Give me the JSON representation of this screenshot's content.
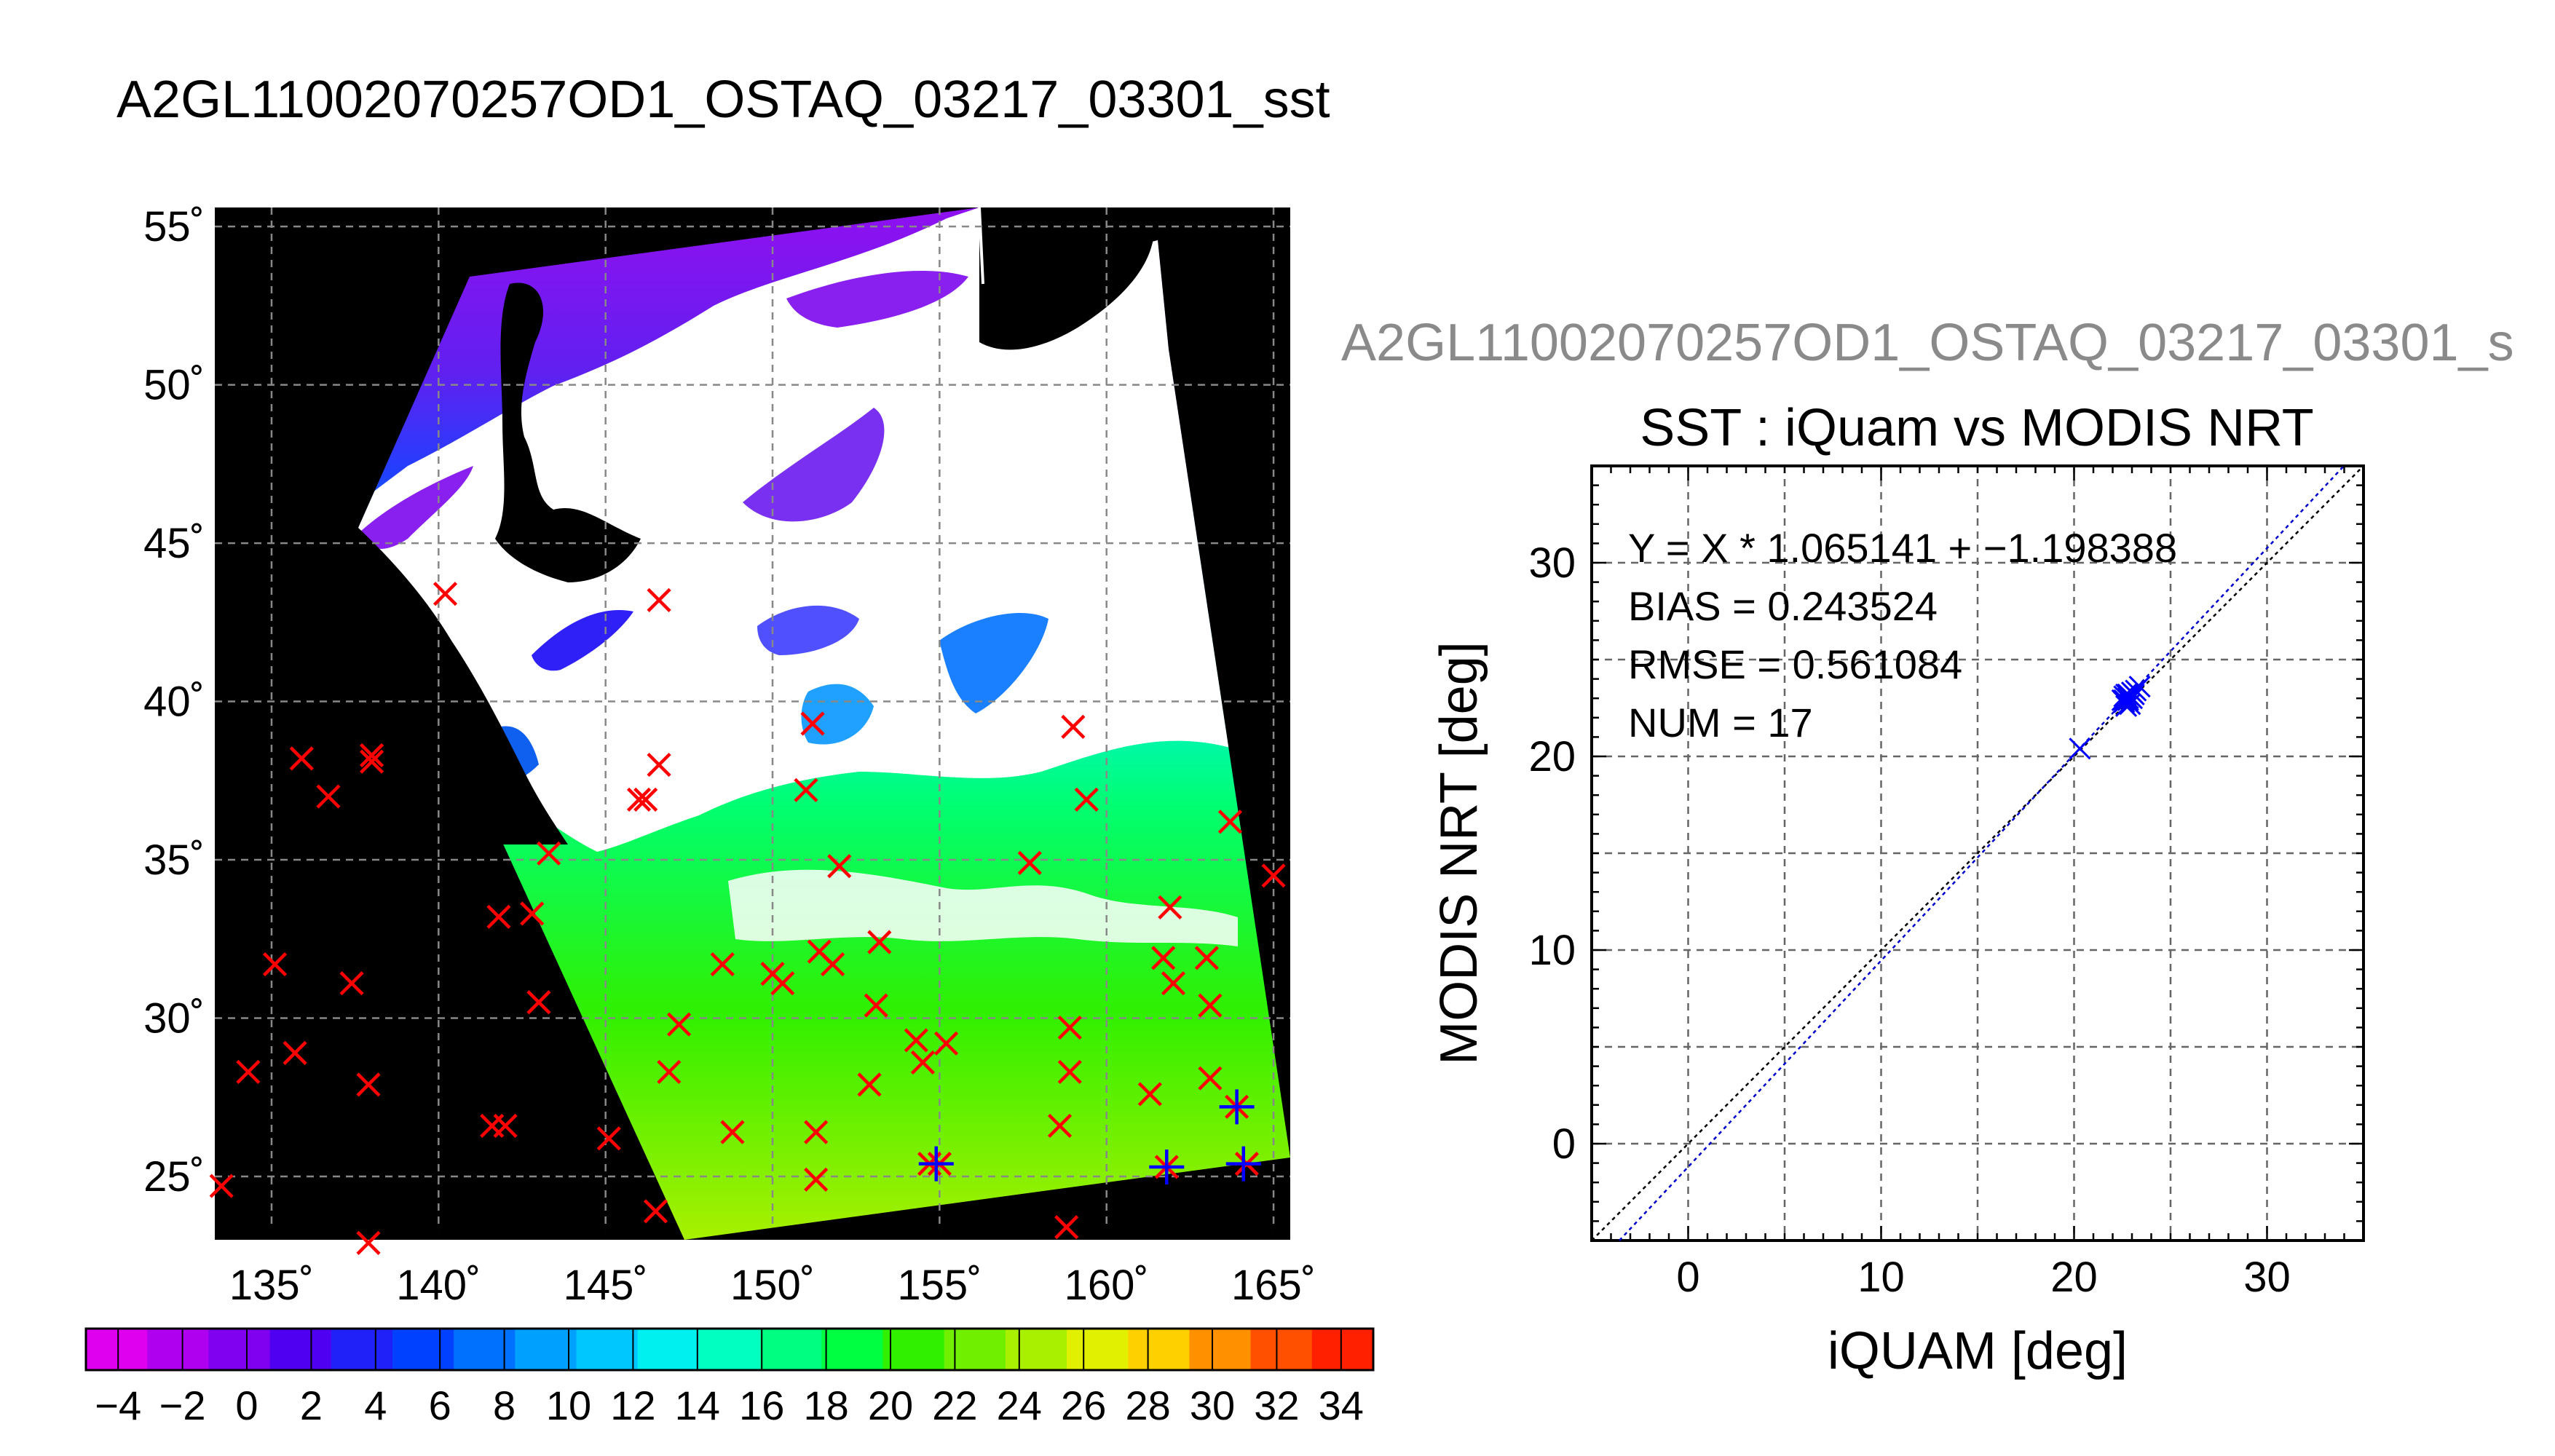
{
  "page_title": "A2GL11002070257OD1_OSTAQ_03217_03301_sst",
  "scatter_file_title": "A2GL11002070257OD1_OSTAQ_03217_03301_s",
  "colors": {
    "background": "#ffffff",
    "map_land_nodata": "#000000",
    "cloud_mask": "#ffffff",
    "marker_in_situ": "#ff0000",
    "marker_matchup": "#0000ff",
    "regression_line": "#0000cc",
    "identity_line": "#000000",
    "grid": "#555555"
  },
  "chart_data": [
    {
      "type": "heatmap",
      "title": "",
      "xlabel": "",
      "ylabel": "",
      "xlim": [
        133.3,
        165.5
      ],
      "ylim": [
        23.0,
        55.6
      ],
      "x_ticks": [
        135,
        140,
        145,
        150,
        155,
        160,
        165
      ],
      "x_tick_labels": [
        "135˚",
        "140˚",
        "145˚",
        "150˚",
        "155˚",
        "160˚",
        "165˚"
      ],
      "y_ticks": [
        25,
        30,
        35,
        40,
        45,
        50,
        55
      ],
      "y_tick_labels": [
        "25˚",
        "30˚",
        "35˚",
        "40˚",
        "45˚",
        "50˚",
        "55˚"
      ],
      "grid": true,
      "colorbar": {
        "min": -5,
        "max": 35,
        "step": 2,
        "tick_labels": [
          "−4",
          "−2",
          "0",
          "2",
          "4",
          "6",
          "8",
          "10",
          "12",
          "14",
          "16",
          "18",
          "20",
          "22",
          "24",
          "26",
          "28",
          "30",
          "32",
          "34"
        ],
        "colors": [
          "#e000f0",
          "#b000f0",
          "#8000f0",
          "#5000f0",
          "#2020f8",
          "#0040ff",
          "#0070ff",
          "#00a0ff",
          "#00c8ff",
          "#00f0f0",
          "#00ffc0",
          "#00ff80",
          "#00ff40",
          "#30f000",
          "#70f000",
          "#a8f000",
          "#e0f000",
          "#ffd000",
          "#ff9000",
          "#ff5000",
          "#ff2000"
        ]
      },
      "series": [
        {
          "name": "",
          "marker": "x",
          "color": "#ff0000",
          "points": [
            [
              140.2,
              43.4
            ],
            [
              146.6,
              43.2
            ],
            [
              135.9,
              38.2
            ],
            [
              138.0,
              38.3
            ],
            [
              138.0,
              38.1
            ],
            [
              136.7,
              37.0
            ],
            [
              146.6,
              38.0
            ],
            [
              146.0,
              36.9
            ],
            [
              146.2,
              36.9
            ],
            [
              151.0,
              37.2
            ],
            [
              151.2,
              39.3
            ],
            [
              159.0,
              39.2
            ],
            [
              159.4,
              36.9
            ],
            [
              163.7,
              36.2
            ],
            [
              165.0,
              34.5
            ],
            [
              143.3,
              35.2
            ],
            [
              152.0,
              34.8
            ],
            [
              157.7,
              34.9
            ],
            [
              141.8,
              33.2
            ],
            [
              142.8,
              33.3
            ],
            [
              161.9,
              33.5
            ],
            [
              135.1,
              31.7
            ],
            [
              137.4,
              31.1
            ],
            [
              148.5,
              31.7
            ],
            [
              150.0,
              31.4
            ],
            [
              150.3,
              31.1
            ],
            [
              151.4,
              32.1
            ],
            [
              151.8,
              31.7
            ],
            [
              153.2,
              32.4
            ],
            [
              161.7,
              31.9
            ],
            [
              163.0,
              31.9
            ],
            [
              162.0,
              31.1
            ],
            [
              143.0,
              30.5
            ],
            [
              147.2,
              29.8
            ],
            [
              153.1,
              30.4
            ],
            [
              158.9,
              29.7
            ],
            [
              163.1,
              30.4
            ],
            [
              135.7,
              28.9
            ],
            [
              134.3,
              28.3
            ],
            [
              137.9,
              27.9
            ],
            [
              146.9,
              28.3
            ],
            [
              154.3,
              29.3
            ],
            [
              154.5,
              28.6
            ],
            [
              155.2,
              29.2
            ],
            [
              158.9,
              28.3
            ],
            [
              152.9,
              27.9
            ],
            [
              161.3,
              27.6
            ],
            [
              163.1,
              28.1
            ],
            [
              141.6,
              26.6
            ],
            [
              142.0,
              26.6
            ],
            [
              145.1,
              26.2
            ],
            [
              148.8,
              26.4
            ],
            [
              151.3,
              26.4
            ],
            [
              158.6,
              26.6
            ],
            [
              154.7,
              25.4
            ],
            [
              155.0,
              25.4
            ],
            [
              151.3,
              24.9
            ],
            [
              161.8,
              25.3
            ],
            [
              164.2,
              25.4
            ],
            [
              163.9,
              27.2
            ],
            [
              133.5,
              24.7
            ],
            [
              146.5,
              23.9
            ],
            [
              158.8,
              23.4
            ],
            [
              137.9,
              22.9
            ]
          ]
        },
        {
          "name": "",
          "marker": "+",
          "color": "#0000ff",
          "points": [
            [
              154.9,
              25.4
            ],
            [
              161.8,
              25.3
            ],
            [
              164.1,
              25.4
            ],
            [
              163.9,
              27.2
            ]
          ]
        }
      ]
    },
    {
      "type": "scatter",
      "title": "SST : iQuam vs MODIS NRT",
      "xlabel": "iQUAM [deg]",
      "ylabel": "MODIS NRT [deg]",
      "xlim": [
        -5,
        35
      ],
      "ylim": [
        -5,
        35
      ],
      "x_ticks": [
        0,
        10,
        20,
        30
      ],
      "y_ticks": [
        0,
        10,
        20,
        30
      ],
      "grid": true,
      "annotations": [
        "Y = X * 1.065141 + −1.198388",
        "BIAS = 0.243524",
        "RMSE = 0.561084",
        "NUM = 17"
      ],
      "regression": {
        "slope": 1.065141,
        "intercept": -1.198388
      },
      "identity_line": true,
      "series": [
        {
          "name": "",
          "marker": "x",
          "color": "#0000ff",
          "points": [
            [
              20.3,
              20.4
            ],
            [
              22.6,
              22.9
            ],
            [
              22.7,
              23.2
            ],
            [
              22.8,
              23.0
            ],
            [
              22.9,
              22.7
            ],
            [
              23.0,
              23.3
            ],
            [
              23.2,
              23.4
            ],
            [
              22.5,
              22.9
            ],
            [
              22.7,
              22.6
            ],
            [
              22.8,
              23.2
            ],
            [
              23.0,
              23.0
            ],
            [
              23.4,
              23.6
            ],
            [
              22.6,
              23.1
            ],
            [
              22.9,
              23.1
            ],
            [
              22.6,
              22.8
            ],
            [
              23.1,
              23.2
            ],
            [
              22.8,
              22.9
            ]
          ]
        }
      ]
    }
  ]
}
